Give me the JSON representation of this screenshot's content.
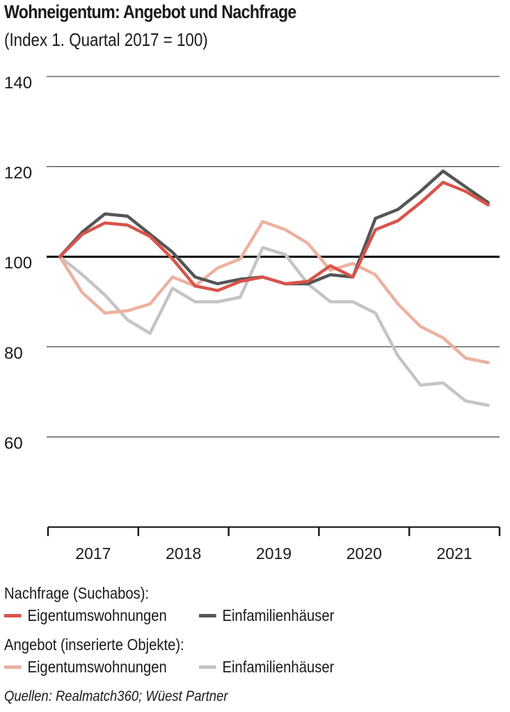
{
  "chart_data": {
    "type": "line",
    "title": "Wohneigentum: Angebot und Nachfrage",
    "subtitle": "(Index 1. Quartal 2017 = 100)",
    "ylim": [
      40,
      140
    ],
    "y_ticks": [
      140,
      120,
      100,
      80,
      60
    ],
    "year_labels": [
      "2017",
      "2018",
      "2019",
      "2020",
      "2021"
    ],
    "x_quarters": [
      "2017-Q1",
      "2017-Q2",
      "2017-Q3",
      "2017-Q4",
      "2018-Q1",
      "2018-Q2",
      "2018-Q3",
      "2018-Q4",
      "2019-Q1",
      "2019-Q2",
      "2019-Q3",
      "2019-Q4",
      "2020-Q1",
      "2020-Q2",
      "2020-Q3",
      "2020-Q4",
      "2021-Q1",
      "2021-Q2",
      "2021-Q3",
      "2021-Q4"
    ],
    "reference_value": 100,
    "series": [
      {
        "name": "Einfamilienhäuser",
        "group": "Angebot (inserierte Objekte)",
        "color": "#c4c4c4",
        "values": [
          100,
          96,
          91.5,
          86,
          83,
          93,
          90,
          90,
          91,
          102,
          100.5,
          94,
          90,
          90,
          87.5,
          78,
          71.5,
          72,
          68,
          67
        ]
      },
      {
        "name": "Eigentumswohnungen",
        "group": "Angebot (inserierte Objekte)",
        "color": "#edb1a0",
        "values": [
          100,
          92,
          87.5,
          88,
          89.5,
          95.5,
          93.5,
          97.5,
          99.5,
          107.8,
          106,
          103,
          97,
          98.5,
          96,
          89.5,
          84.5,
          82,
          77.5,
          76.5
        ]
      },
      {
        "name": "Einfamilienhäuser",
        "group": "Nachfrage (Suchabos)",
        "color": "#555555",
        "values": [
          100,
          105.5,
          109.5,
          109,
          105,
          101,
          95.5,
          94,
          95,
          95.5,
          94,
          94,
          96,
          95.5,
          108.5,
          110.5,
          114.5,
          119,
          115.5,
          112
        ]
      },
      {
        "name": "Eigentumswohnungen",
        "group": "Nachfrage (Suchabos)",
        "color": "#d9534a",
        "values": [
          100,
          105,
          107.5,
          107,
          104.5,
          99.5,
          93.5,
          92.5,
          94.5,
          95.5,
          94,
          94.5,
          98,
          95.5,
          106,
          108,
          112,
          116.5,
          114.5,
          111.5
        ]
      }
    ]
  },
  "legend": {
    "demand_heading": "Nachfrage (Suchabos):",
    "demand_items": [
      {
        "label": "Eigentumswohnungen",
        "color": "#d9534a"
      },
      {
        "label": "Einfamilienhäuser",
        "color": "#555555"
      }
    ],
    "supply_heading": "Angebot (inserierte Objekte):",
    "supply_items": [
      {
        "label": "Eigentumswohnungen",
        "color": "#edb1a0"
      },
      {
        "label": "Einfamilienhäuser",
        "color": "#c4c4c4"
      }
    ]
  },
  "source": "Quellen: Realmatch360; Wüest Partner"
}
